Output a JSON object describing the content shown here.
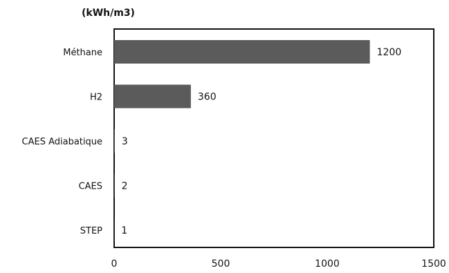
{
  "chart_data": {
    "type": "bar",
    "orientation": "horizontal",
    "unit_label": "(kWh/m3)",
    "categories": [
      "Méthane",
      "H2",
      "CAES Adiabatique",
      "CAES",
      "STEP"
    ],
    "values": [
      1200,
      360,
      3,
      2,
      1
    ],
    "data_labels": [
      "1200",
      "360",
      "3",
      "2",
      "1"
    ],
    "xlim": [
      0,
      1500
    ],
    "x_ticks": [
      0,
      500,
      1000,
      1500
    ],
    "grid": false,
    "legend": "none",
    "bar_color": "#5b5b5b"
  }
}
